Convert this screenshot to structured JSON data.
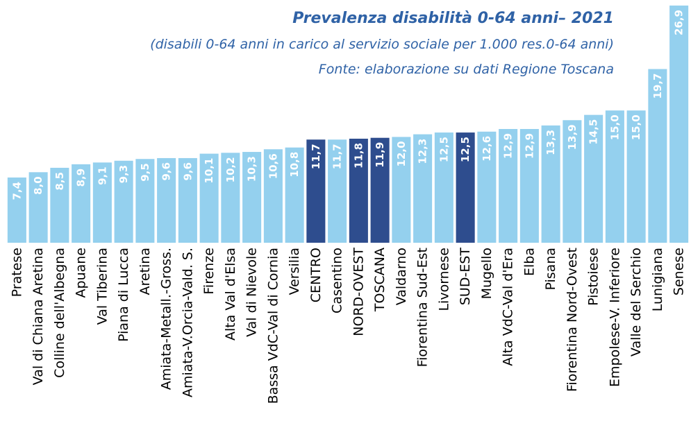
{
  "chart_data": {
    "type": "bar",
    "title": "Prevalenza disabilità 0-64 anni– 2021",
    "subtitle": "(disabili 0-64 anni in carico al servizio sociale per 1.000 res.0-64 anni)",
    "source": "Fonte: elaborazione su dati Regione Toscana",
    "categories": [
      "Pratese",
      "Val di Chiana Aretina",
      "Colline dell'Albegna",
      "Apuane",
      "Val Tiberina",
      "Piana di Lucca",
      "Aretina",
      "Amiata-Metall.-Gross.",
      "Amiata-V.Orcia-Vald. S.",
      "Firenze",
      "Alta Val d'Elsa",
      "Val di Nievole",
      "Bassa VdC-Val di Cornia",
      "Versilia",
      "CENTRO",
      "Casentino",
      "NORD-OVEST",
      "TOSCANA",
      "Valdarno",
      "Fiorentina Sud-Est",
      "Livornese",
      "SUD-EST",
      "Mugello",
      "Alta VdC-Val d'Era",
      "Elba",
      "Pisana",
      "Fiorentina Nord-Ovest",
      "Pistoiese",
      "Empolese-V. Inferiore",
      "Valle del Serchio",
      "Lunigiana",
      "Senese"
    ],
    "values": [
      7.4,
      8.0,
      8.5,
      8.9,
      9.1,
      9.3,
      9.5,
      9.6,
      9.6,
      10.1,
      10.2,
      10.3,
      10.6,
      10.8,
      11.7,
      11.7,
      11.8,
      11.9,
      12.0,
      12.3,
      12.5,
      12.5,
      12.6,
      12.9,
      12.9,
      13.3,
      13.9,
      14.5,
      15.0,
      15.0,
      19.7,
      26.9
    ],
    "value_labels": [
      "7,4",
      "8,0",
      "8,5",
      "8,9",
      "9,1",
      "9,3",
      "9,5",
      "9,6",
      "9,6",
      "10,1",
      "10,2",
      "10,3",
      "10,6",
      "10,8",
      "11,7",
      "11,7",
      "11,8",
      "11,9",
      "12,0",
      "12,3",
      "12,5",
      "12,5",
      "12,6",
      "12,9",
      "12,9",
      "13,3",
      "13,9",
      "14,5",
      "15,0",
      "15,0",
      "19,7",
      "26,9"
    ],
    "colors": [
      "#94d0ee",
      "#94d0ee",
      "#94d0ee",
      "#94d0ee",
      "#94d0ee",
      "#94d0ee",
      "#94d0ee",
      "#94d0ee",
      "#94d0ee",
      "#94d0ee",
      "#94d0ee",
      "#94d0ee",
      "#94d0ee",
      "#94d0ee",
      "#2e4d8e",
      "#94d0ee",
      "#2e4d8e",
      "#2e4d8e",
      "#94d0ee",
      "#94d0ee",
      "#94d0ee",
      "#2e4d8e",
      "#94d0ee",
      "#94d0ee",
      "#94d0ee",
      "#94d0ee",
      "#94d0ee",
      "#94d0ee",
      "#94d0ee",
      "#94d0ee",
      "#94d0ee",
      "#94d0ee"
    ]
  }
}
